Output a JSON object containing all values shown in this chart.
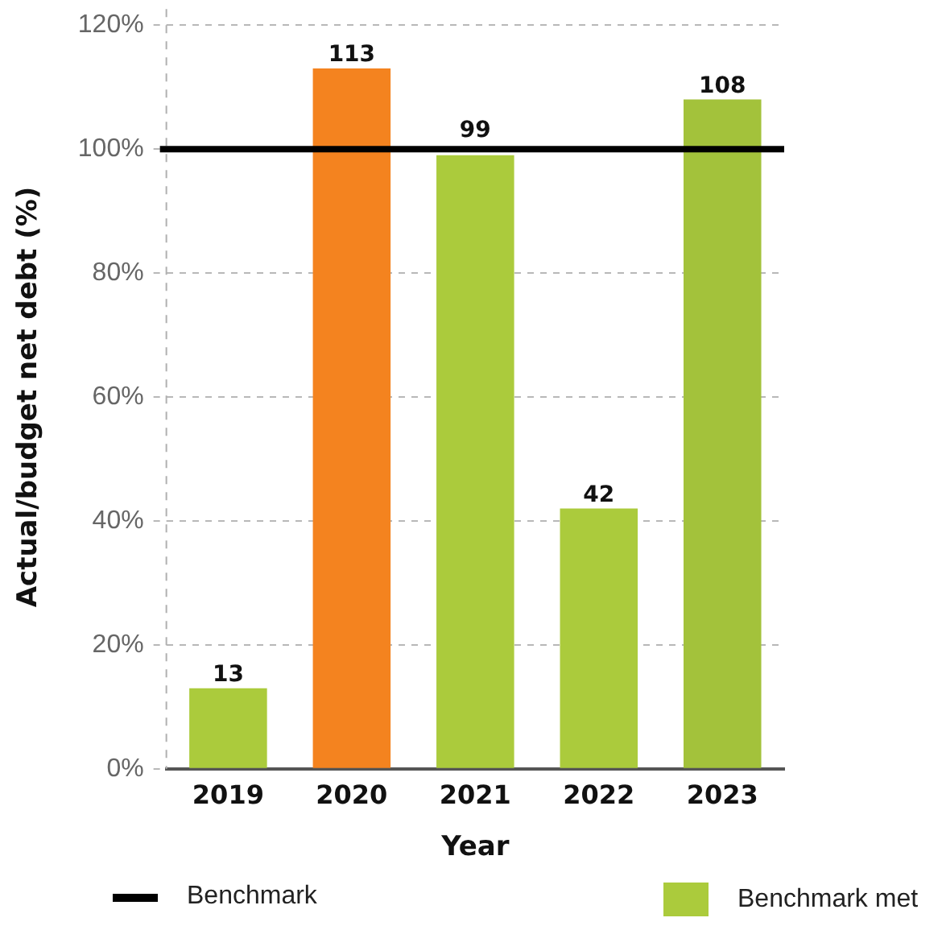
{
  "chart_data": {
    "type": "bar",
    "xlabel": "Year",
    "ylabel": "Actual/budget net debt (%)",
    "categories": [
      "2019",
      "2020",
      "2021",
      "2022",
      "2023"
    ],
    "series": [
      {
        "name": "Benchmark met",
        "color": "#abcb3c",
        "colors": [
          "#abcb3c",
          "#f4831f",
          "#abcb3c",
          "#abcb3c",
          "#a3c23b"
        ],
        "values": [
          13,
          113,
          99,
          42,
          108
        ]
      }
    ],
    "ylim": [
      0,
      120
    ],
    "yticks": [
      {
        "value": 0,
        "label": "0%"
      },
      {
        "value": 20,
        "label": "20%"
      },
      {
        "value": 40,
        "label": "40%"
      },
      {
        "value": 60,
        "label": "60%"
      },
      {
        "value": 80,
        "label": "80%"
      },
      {
        "value": 100,
        "label": "100%"
      },
      {
        "value": 120,
        "label": "120%"
      }
    ],
    "ref_lines": [
      {
        "axis": "y",
        "value": 100,
        "label": "Benchmark",
        "color": "#000000"
      }
    ],
    "data_labels": true,
    "grid": "y",
    "legend": "bottom"
  }
}
